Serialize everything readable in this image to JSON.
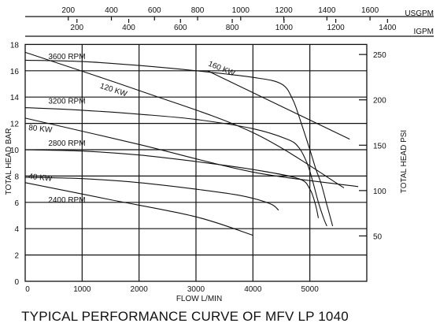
{
  "chart_data": {
    "type": "line",
    "title": "TYPICAL PERFORMANCE CURVE OF MFV LP 1040",
    "xlabel": "FLOW L/MIN",
    "ylabel_left": "TOTAL HEAD BAR",
    "ylabel_right": "TOTAL HEAD PSI",
    "top_axis_1_label": "USGPM",
    "top_axis_2_label": "IGPM",
    "xlim": [
      0,
      6000
    ],
    "ylim": [
      0,
      18
    ],
    "grid": true,
    "x_ticks": [
      "0",
      "1000",
      "2000",
      "3000",
      "4000",
      "5000"
    ],
    "y_left_ticks": [
      "0",
      "2",
      "4",
      "6",
      "8",
      "10",
      "12",
      "14",
      "16",
      "18"
    ],
    "y_right_ticks": [
      {
        "psi": 50,
        "label": "50"
      },
      {
        "psi": 100,
        "label": "100"
      },
      {
        "psi": 150,
        "label": "150"
      },
      {
        "psi": 200,
        "label": "200"
      },
      {
        "psi": 250,
        "label": "250"
      }
    ],
    "usgpm_ticks": [
      {
        "gpm": 200,
        "label": "200"
      },
      {
        "gpm": 400,
        "label": "400"
      },
      {
        "gpm": 600,
        "label": "600"
      },
      {
        "gpm": 800,
        "label": "800"
      },
      {
        "gpm": 1000,
        "label": "1000"
      },
      {
        "gpm": 1200,
        "label": "1200"
      },
      {
        "gpm": 1400,
        "label": "1400"
      },
      {
        "gpm": 1600,
        "label": "1600"
      }
    ],
    "igpm_ticks": [
      {
        "gpm": 200,
        "label": "200"
      },
      {
        "gpm": 400,
        "label": "400"
      },
      {
        "gpm": 600,
        "label": "600"
      },
      {
        "gpm": 800,
        "label": "800"
      },
      {
        "gpm": 1000,
        "label": "1000"
      },
      {
        "gpm": 1200,
        "label": "1200"
      },
      {
        "gpm": 1400,
        "label": "1400"
      }
    ],
    "series": [
      {
        "name": "3600 RPM",
        "x": [
          0,
          1000,
          2000,
          3000,
          4000,
          4500,
          4700,
          4850,
          5000,
          5100,
          5200,
          5300,
          5400
        ],
        "y": [
          16.8,
          16.7,
          16.4,
          16.0,
          15.5,
          15.0,
          13.8,
          12.0,
          10.0,
          8.6,
          7.4,
          5.8,
          4.2
        ]
      },
      {
        "name": "3200 RPM",
        "x": [
          0,
          1000,
          2000,
          3000,
          4000,
          4600,
          4800,
          4950,
          5050,
          5150,
          5250,
          5300
        ],
        "y": [
          13.2,
          13.0,
          12.7,
          12.3,
          11.6,
          10.8,
          10.2,
          9.0,
          7.6,
          6.0,
          4.7,
          4.2
        ]
      },
      {
        "name": "2800 RPM",
        "x": [
          0,
          1000,
          2000,
          3000,
          4000,
          4800,
          5000,
          5100,
          5150
        ],
        "y": [
          10.0,
          9.9,
          9.6,
          9.1,
          8.5,
          7.8,
          7.0,
          5.8,
          4.8
        ]
      },
      {
        "name": "2400 RPM",
        "x": [
          0,
          1000,
          2000,
          3000,
          3800,
          4300,
          4450
        ],
        "y": [
          7.9,
          7.8,
          7.5,
          7.0,
          6.5,
          5.9,
          5.4
        ]
      },
      {
        "name": "160 KW",
        "x": [
          3200,
          5700
        ],
        "y": [
          16.0,
          10.8
        ]
      },
      {
        "name": "120 KW",
        "x": [
          0,
          2000,
          4000,
          5600
        ],
        "y": [
          17.4,
          14.5,
          11.3,
          7.1
        ]
      },
      {
        "name": "80 KW",
        "x": [
          0,
          2000,
          4000,
          5850
        ],
        "y": [
          12.4,
          10.4,
          8.3,
          7.2
        ]
      },
      {
        "name": "40 KW",
        "x": [
          0,
          1500,
          3000,
          4000
        ],
        "y": [
          7.5,
          6.2,
          4.9,
          3.5
        ]
      }
    ],
    "curve_labels": [
      {
        "text": "3600 RPM",
        "x": 350,
        "y": 16.9,
        "rot": 0
      },
      {
        "text": "120 KW",
        "x": 1250,
        "y": 14.7,
        "rot": 18
      },
      {
        "text": "160 KW",
        "x": 3150,
        "y": 16.4,
        "rot": 22
      },
      {
        "text": "3200 RPM",
        "x": 350,
        "y": 13.5,
        "rot": 0
      },
      {
        "text": "80 KW",
        "x": 0,
        "y": 11.5,
        "rot": 6
      },
      {
        "text": "2800 RPM",
        "x": 350,
        "y": 10.3,
        "rot": 0
      },
      {
        "text": "40 KW",
        "x": 0,
        "y": 7.8,
        "rot": 6
      },
      {
        "text": "2400 RPM",
        "x": 350,
        "y": 6.0,
        "rot": 0
      }
    ]
  }
}
